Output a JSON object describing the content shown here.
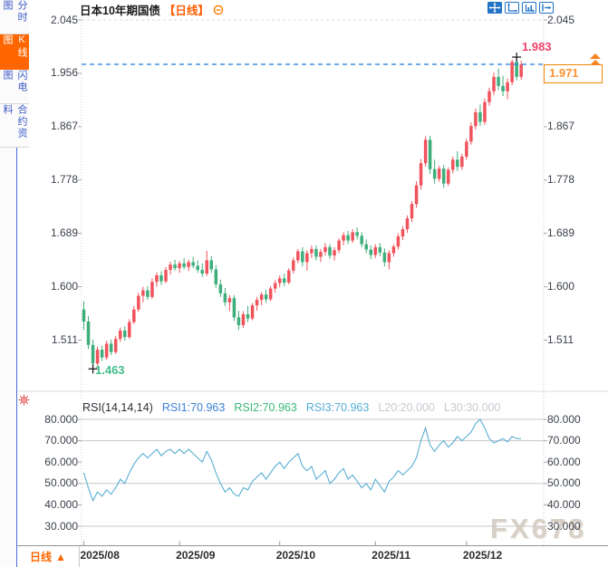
{
  "header": {
    "title": "日本10年期国债",
    "period_tag": "【日线】",
    "icons": [
      "pan-icon",
      "scale-up-icon",
      "scale-bars-icon",
      "go-to-latest-icon"
    ]
  },
  "sidebar": {
    "items": [
      {
        "label": "分时图",
        "active": false
      },
      {
        "label": "K线图",
        "active": true
      },
      {
        "label": "闪电图",
        "active": false
      },
      {
        "label": "合约资料",
        "active": false
      }
    ]
  },
  "bottom": {
    "period_label": "日线",
    "period_arrow": "▲"
  },
  "watermark": "FX678",
  "chart_data": {
    "type": "candlestick+rsi",
    "instrument": "日本10年期国债",
    "period": "日线",
    "price_axis": {
      "ylim": [
        1.511,
        2.045
      ],
      "left": [
        "2.045",
        "1.956",
        "1.867",
        "1.778",
        "1.689",
        "1.600",
        "1.511"
      ],
      "right": [
        "2.045",
        "1.867",
        "1.778",
        "1.689",
        "1.600",
        "1.511"
      ]
    },
    "annotations": {
      "high": "1.983",
      "low": "1.463",
      "last": "1.971"
    },
    "months": [
      {
        "label": "2025/08",
        "index": 0
      },
      {
        "label": "2025/09",
        "index": 21
      },
      {
        "label": "2025/10",
        "index": 43
      },
      {
        "label": "2025/11",
        "index": 64
      },
      {
        "label": "2025/12",
        "index": 84
      }
    ],
    "candles": [
      [
        1.562,
        1.576,
        1.528,
        1.542
      ],
      [
        1.542,
        1.551,
        1.496,
        1.503
      ],
      [
        1.503,
        1.512,
        1.463,
        1.472
      ],
      [
        1.472,
        1.5,
        1.468,
        1.495
      ],
      [
        1.495,
        1.502,
        1.476,
        1.482
      ],
      [
        1.482,
        1.51,
        1.478,
        1.505
      ],
      [
        1.505,
        1.512,
        1.486,
        1.491
      ],
      [
        1.491,
        1.518,
        1.488,
        1.513
      ],
      [
        1.513,
        1.532,
        1.508,
        1.527
      ],
      [
        1.527,
        1.534,
        1.51,
        1.516
      ],
      [
        1.516,
        1.546,
        1.513,
        1.541
      ],
      [
        1.541,
        1.568,
        1.538,
        1.562
      ],
      [
        1.562,
        1.59,
        1.558,
        1.585
      ],
      [
        1.585,
        1.6,
        1.574,
        1.594
      ],
      [
        1.594,
        1.601,
        1.578,
        1.583
      ],
      [
        1.583,
        1.614,
        1.58,
        1.608
      ],
      [
        1.608,
        1.624,
        1.6,
        1.619
      ],
      [
        1.619,
        1.626,
        1.603,
        1.609
      ],
      [
        1.609,
        1.633,
        1.606,
        1.628
      ],
      [
        1.628,
        1.642,
        1.62,
        1.637
      ],
      [
        1.637,
        1.645,
        1.627,
        1.631
      ],
      [
        1.631,
        1.643,
        1.623,
        1.639
      ],
      [
        1.639,
        1.648,
        1.629,
        1.633
      ],
      [
        1.633,
        1.645,
        1.626,
        1.641
      ],
      [
        1.641,
        1.65,
        1.631,
        1.635
      ],
      [
        1.635,
        1.644,
        1.623,
        1.628
      ],
      [
        1.628,
        1.639,
        1.616,
        1.622
      ],
      [
        1.622,
        1.66,
        1.618,
        1.644
      ],
      [
        1.644,
        1.651,
        1.623,
        1.629
      ],
      [
        1.629,
        1.636,
        1.598,
        1.604
      ],
      [
        1.604,
        1.612,
        1.583,
        1.589
      ],
      [
        1.589,
        1.598,
        1.568,
        1.574
      ],
      [
        1.574,
        1.586,
        1.559,
        1.581
      ],
      [
        1.581,
        1.586,
        1.543,
        1.549
      ],
      [
        1.549,
        1.56,
        1.528,
        1.536
      ],
      [
        1.536,
        1.559,
        1.531,
        1.554
      ],
      [
        1.554,
        1.568,
        1.541,
        1.547
      ],
      [
        1.547,
        1.573,
        1.544,
        1.569
      ],
      [
        1.569,
        1.583,
        1.56,
        1.578
      ],
      [
        1.578,
        1.591,
        1.569,
        1.587
      ],
      [
        1.587,
        1.595,
        1.573,
        1.579
      ],
      [
        1.579,
        1.601,
        1.576,
        1.597
      ],
      [
        1.597,
        1.611,
        1.59,
        1.606
      ],
      [
        1.606,
        1.619,
        1.599,
        1.614
      ],
      [
        1.614,
        1.622,
        1.601,
        1.607
      ],
      [
        1.607,
        1.631,
        1.604,
        1.627
      ],
      [
        1.627,
        1.649,
        1.622,
        1.644
      ],
      [
        1.644,
        1.663,
        1.639,
        1.659
      ],
      [
        1.659,
        1.666,
        1.634,
        1.641
      ],
      [
        1.641,
        1.661,
        1.627,
        1.656
      ],
      [
        1.656,
        1.669,
        1.648,
        1.663
      ],
      [
        1.663,
        1.669,
        1.644,
        1.65
      ],
      [
        1.65,
        1.663,
        1.641,
        1.658
      ],
      [
        1.658,
        1.673,
        1.652,
        1.666
      ],
      [
        1.666,
        1.671,
        1.647,
        1.652
      ],
      [
        1.652,
        1.666,
        1.644,
        1.661
      ],
      [
        1.661,
        1.681,
        1.656,
        1.677
      ],
      [
        1.677,
        1.691,
        1.669,
        1.686
      ],
      [
        1.686,
        1.693,
        1.671,
        1.677
      ],
      [
        1.677,
        1.696,
        1.673,
        1.691
      ],
      [
        1.691,
        1.699,
        1.679,
        1.685
      ],
      [
        1.685,
        1.691,
        1.666,
        1.671
      ],
      [
        1.671,
        1.679,
        1.656,
        1.662
      ],
      [
        1.662,
        1.669,
        1.646,
        1.653
      ],
      [
        1.653,
        1.671,
        1.648,
        1.666
      ],
      [
        1.666,
        1.673,
        1.651,
        1.657
      ],
      [
        1.657,
        1.664,
        1.634,
        1.641
      ],
      [
        1.641,
        1.661,
        1.629,
        1.656
      ],
      [
        1.656,
        1.671,
        1.65,
        1.667
      ],
      [
        1.667,
        1.689,
        1.662,
        1.684
      ],
      [
        1.684,
        1.701,
        1.678,
        1.696
      ],
      [
        1.696,
        1.719,
        1.69,
        1.714
      ],
      [
        1.714,
        1.743,
        1.708,
        1.738
      ],
      [
        1.738,
        1.776,
        1.732,
        1.769
      ],
      [
        1.769,
        1.813,
        1.762,
        1.806
      ],
      [
        1.806,
        1.851,
        1.8,
        1.845
      ],
      [
        1.845,
        1.852,
        1.788,
        1.796
      ],
      [
        1.796,
        1.812,
        1.772,
        1.78
      ],
      [
        1.78,
        1.802,
        1.775,
        1.797
      ],
      [
        1.797,
        1.803,
        1.765,
        1.772
      ],
      [
        1.772,
        1.799,
        1.768,
        1.795
      ],
      [
        1.795,
        1.817,
        1.789,
        1.812
      ],
      [
        1.812,
        1.826,
        1.793,
        1.8
      ],
      [
        1.8,
        1.822,
        1.795,
        1.817
      ],
      [
        1.817,
        1.847,
        1.812,
        1.842
      ],
      [
        1.842,
        1.874,
        1.837,
        1.868
      ],
      [
        1.868,
        1.897,
        1.862,
        1.891
      ],
      [
        1.891,
        1.904,
        1.868,
        1.875
      ],
      [
        1.875,
        1.914,
        1.87,
        1.908
      ],
      [
        1.908,
        1.932,
        1.902,
        1.926
      ],
      [
        1.926,
        1.957,
        1.92,
        1.95
      ],
      [
        1.95,
        1.964,
        1.928,
        1.935
      ],
      [
        1.935,
        1.952,
        1.918,
        1.926
      ],
      [
        1.926,
        1.947,
        1.913,
        1.941
      ],
      [
        1.941,
        1.979,
        1.936,
        1.975
      ],
      [
        1.975,
        1.983,
        1.944,
        1.95
      ],
      [
        1.95,
        1.977,
        1.945,
        1.971
      ]
    ],
    "rsi": {
      "header": {
        "name": "RSI(14,14,14)",
        "rsi1": "RSI1:70.963",
        "rsi2": "RSI2:70.963",
        "rsi3": "RSI3:70.963",
        "l20": "L20:20.000",
        "l30": "L30:30.000"
      },
      "ylim": [
        30,
        80
      ],
      "gridlines": [
        80,
        70,
        50,
        30
      ],
      "axis_labels": [
        "80.000",
        "70.000",
        "60.000",
        "50.000",
        "40.000",
        "30.000"
      ],
      "values": [
        55,
        48,
        42,
        46,
        44,
        47,
        45,
        48,
        52,
        50,
        55,
        59,
        62,
        64,
        62,
        64,
        66,
        63,
        65,
        66,
        64,
        66,
        64,
        66,
        64,
        62,
        60,
        65,
        61,
        55,
        50,
        46,
        48,
        45,
        44,
        48,
        47,
        51,
        53,
        55,
        52,
        55,
        58,
        60,
        57,
        60,
        62,
        64,
        58,
        56,
        58,
        52,
        54,
        56,
        50,
        52,
        55,
        57,
        52,
        54,
        51,
        48,
        50,
        47,
        52,
        49,
        46,
        51,
        53,
        56,
        54,
        56,
        58,
        62,
        70,
        76,
        68,
        65,
        68,
        70,
        67,
        69,
        72,
        70,
        72,
        74,
        78,
        80,
        76,
        71,
        69,
        70,
        71,
        69.5,
        72,
        71,
        70.963
      ]
    },
    "colors": {
      "up": "#f0535c",
      "down": "#3eae7a",
      "rsi_line": "#58aed3",
      "price_line": "#1e7ad6",
      "high_label": "#ee4368",
      "low_label": "#43bd8a",
      "accent": "#ff6600",
      "box_border": "#ef8600"
    }
  }
}
